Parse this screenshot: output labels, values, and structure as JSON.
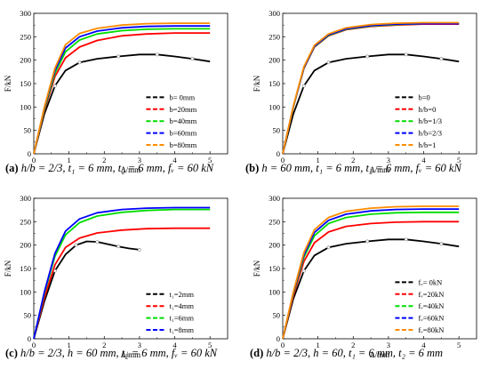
{
  "chart_data": [
    {
      "type": "line",
      "panel_label": "(a)",
      "caption": "h/b = 2/3, t₁ = 6 mm, t₂ = 6 mm, fᵥ = 60 kN",
      "xlabel": "Δ/mm",
      "ylabel": "F/kN",
      "xlim": [
        0,
        5.5
      ],
      "ylim": [
        0,
        300
      ],
      "xticks": [
        0,
        1,
        2,
        3,
        4,
        5
      ],
      "yticks": [
        0,
        50,
        100,
        150,
        200,
        250,
        300
      ],
      "legend_position": "lower-right",
      "series": [
        {
          "name": "b= 0mm",
          "color": "#000000",
          "x": [
            0,
            0.3,
            0.6,
            0.9,
            1.3,
            1.8,
            2.4,
            3.0,
            3.5,
            4.0,
            4.5,
            5.0
          ],
          "y": [
            0,
            85,
            145,
            178,
            195,
            203,
            208,
            212,
            212,
            208,
            203,
            197
          ]
        },
        {
          "name": "b=20mm",
          "color": "#ff0000",
          "x": [
            0,
            0.3,
            0.6,
            0.9,
            1.3,
            1.8,
            2.5,
            3.2,
            4.0,
            5.0
          ],
          "y": [
            0,
            92,
            165,
            205,
            228,
            242,
            252,
            256,
            258,
            258
          ]
        },
        {
          "name": "b=40mm",
          "color": "#00dd00",
          "x": [
            0,
            0.3,
            0.6,
            0.9,
            1.3,
            1.8,
            2.5,
            3.2,
            4.0,
            5.0
          ],
          "y": [
            0,
            95,
            172,
            218,
            243,
            256,
            263,
            266,
            267,
            267
          ]
        },
        {
          "name": "b=60mm",
          "color": "#0000ff",
          "x": [
            0,
            0.3,
            0.6,
            0.9,
            1.3,
            1.8,
            2.5,
            3.2,
            4.0,
            5.0
          ],
          "y": [
            0,
            98,
            178,
            226,
            250,
            262,
            269,
            272,
            273,
            273
          ]
        },
        {
          "name": "b=80mm",
          "color": "#ff8c00",
          "x": [
            0,
            0.3,
            0.6,
            0.9,
            1.3,
            1.8,
            2.5,
            3.2,
            4.0,
            5.0
          ],
          "y": [
            0,
            100,
            183,
            233,
            257,
            268,
            275,
            278,
            279,
            279
          ]
        }
      ]
    },
    {
      "type": "line",
      "panel_label": "(b)",
      "caption": "h = 60 mm, t₁ = 6 mm, t₂ = 6 mm, fᵥ = 60 kN",
      "xlabel": "Δ/mm",
      "ylabel": "F/kN",
      "xlim": [
        0,
        5.5
      ],
      "ylim": [
        0,
        300
      ],
      "xticks": [
        0,
        1,
        2,
        3,
        4,
        5
      ],
      "yticks": [
        0,
        50,
        100,
        150,
        200,
        250,
        300
      ],
      "legend_position": "lower-right",
      "series": [
        {
          "name": "b=0",
          "color": "#000000",
          "x": [
            0,
            0.3,
            0.6,
            0.9,
            1.3,
            1.8,
            2.4,
            3.0,
            3.5,
            4.0,
            4.5,
            5.0
          ],
          "y": [
            0,
            85,
            145,
            178,
            195,
            203,
            208,
            212,
            212,
            208,
            203,
            197
          ]
        },
        {
          "name": "h/b=0",
          "color": "#ff0000",
          "x": [
            0,
            0.3,
            0.6,
            0.9,
            1.3,
            1.8,
            2.5,
            3.2,
            4.0,
            5.0
          ],
          "y": [
            0,
            100,
            182,
            228,
            252,
            265,
            272,
            275,
            277,
            277
          ]
        },
        {
          "name": "h/b=1/3",
          "color": "#00dd00",
          "x": [
            0,
            0.3,
            0.6,
            0.9,
            1.3,
            1.8,
            2.5,
            3.2,
            4.0,
            5.0
          ],
          "y": [
            0,
            100,
            183,
            229,
            253,
            266,
            273,
            276,
            278,
            278
          ]
        },
        {
          "name": "h/b=2/3",
          "color": "#0000ff",
          "x": [
            0,
            0.3,
            0.6,
            0.9,
            1.3,
            1.8,
            2.5,
            3.2,
            4.0,
            5.0
          ],
          "y": [
            0,
            101,
            184,
            230,
            254,
            267,
            274,
            277,
            278,
            278
          ]
        },
        {
          "name": "h/b=1",
          "color": "#ff8c00",
          "x": [
            0,
            0.3,
            0.6,
            0.9,
            1.3,
            1.8,
            2.5,
            3.2,
            4.0,
            5.0
          ],
          "y": [
            0,
            102,
            186,
            232,
            256,
            269,
            276,
            279,
            280,
            280
          ]
        }
      ]
    },
    {
      "type": "line",
      "panel_label": "(c)",
      "caption": "h/b = 2/3, h = 60 mm, t₂ = 6 mm, fᵥ = 60 kN",
      "xlabel": "Δ/mm",
      "ylabel": "F/kN",
      "xlim": [
        0,
        5.5
      ],
      "ylim": [
        0,
        300
      ],
      "xticks": [
        0,
        1,
        2,
        3,
        4,
        5
      ],
      "yticks": [
        0,
        50,
        100,
        150,
        200,
        250,
        300
      ],
      "legend_position": "lower-right",
      "series": [
        {
          "name": "t₁=2mm",
          "color": "#000000",
          "x": [
            0,
            0.3,
            0.6,
            0.9,
            1.2,
            1.5,
            1.8,
            2.1,
            2.4,
            2.7,
            3.0
          ],
          "y": [
            0,
            80,
            145,
            180,
            200,
            208,
            207,
            202,
            197,
            193,
            190
          ]
        },
        {
          "name": "t₁=4mm",
          "color": "#ff0000",
          "x": [
            0,
            0.3,
            0.6,
            0.9,
            1.3,
            1.8,
            2.5,
            3.2,
            4.0,
            5.0
          ],
          "y": [
            0,
            88,
            158,
            195,
            215,
            226,
            232,
            235,
            236,
            236
          ]
        },
        {
          "name": "t₁=6mm",
          "color": "#00dd00",
          "x": [
            0,
            0.3,
            0.6,
            0.9,
            1.3,
            1.8,
            2.5,
            3.2,
            4.0,
            5.0
          ],
          "y": [
            0,
            97,
            176,
            222,
            248,
            262,
            270,
            274,
            276,
            276
          ]
        },
        {
          "name": "t₁=8mm",
          "color": "#0000ff",
          "x": [
            0,
            0.3,
            0.6,
            0.9,
            1.3,
            1.8,
            2.5,
            3.2,
            4.0,
            5.0
          ],
          "y": [
            0,
            100,
            182,
            230,
            256,
            269,
            276,
            279,
            280,
            280
          ]
        }
      ]
    },
    {
      "type": "line",
      "panel_label": "(d)",
      "caption": "h/b = 2/3, h = 60, t₁ = 6 mm, t₂ = 6 mm",
      "xlabel": "Δ/mm",
      "ylabel": "F/kN",
      "xlim": [
        0,
        5.5
      ],
      "ylim": [
        0,
        300
      ],
      "xticks": [
        0,
        1,
        2,
        3,
        4,
        5
      ],
      "yticks": [
        0,
        50,
        100,
        150,
        200,
        250,
        300
      ],
      "legend_position": "lower-right",
      "series": [
        {
          "name": "fᵥ= 0kN",
          "color": "#000000",
          "x": [
            0,
            0.3,
            0.6,
            0.9,
            1.3,
            1.8,
            2.4,
            3.0,
            3.5,
            4.0,
            4.5,
            5.0
          ],
          "y": [
            0,
            85,
            145,
            178,
            195,
            203,
            208,
            212,
            212,
            208,
            203,
            197
          ]
        },
        {
          "name": "fᵥ=20kN",
          "color": "#ff0000",
          "x": [
            0,
            0.3,
            0.6,
            0.9,
            1.3,
            1.8,
            2.5,
            3.2,
            4.0,
            5.0
          ],
          "y": [
            0,
            92,
            165,
            205,
            228,
            240,
            246,
            249,
            250,
            250
          ]
        },
        {
          "name": "fᵥ=40kN",
          "color": "#00dd00",
          "x": [
            0,
            0.3,
            0.6,
            0.9,
            1.3,
            1.8,
            2.5,
            3.2,
            4.0,
            5.0
          ],
          "y": [
            0,
            96,
            174,
            220,
            246,
            259,
            266,
            269,
            270,
            270
          ]
        },
        {
          "name": "fᵥ=60kN",
          "color": "#0000ff",
          "x": [
            0,
            0.3,
            0.6,
            0.9,
            1.3,
            1.8,
            2.5,
            3.2,
            4.0,
            5.0
          ],
          "y": [
            0,
            98,
            179,
            227,
            253,
            266,
            273,
            276,
            277,
            277
          ]
        },
        {
          "name": "fᵥ=80kN",
          "color": "#ff8c00",
          "x": [
            0,
            0.3,
            0.6,
            0.9,
            1.3,
            1.8,
            2.5,
            3.2,
            4.0,
            5.0
          ],
          "y": [
            0,
            100,
            184,
            233,
            259,
            272,
            279,
            282,
            283,
            283
          ]
        }
      ]
    }
  ]
}
